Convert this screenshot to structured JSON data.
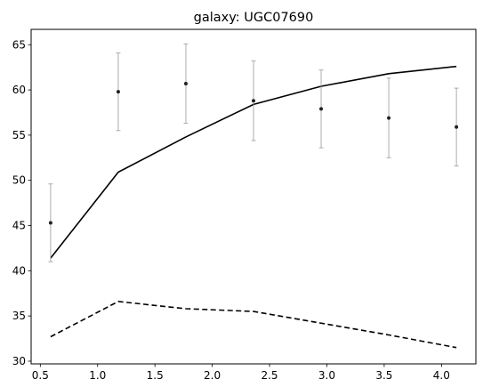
{
  "chart_data": {
    "type": "line",
    "title": "galaxy: UGC07690",
    "xlabel": "",
    "ylabel": "",
    "xlim": [
      0.42,
      4.3
    ],
    "ylim": [
      29.7,
      66.7
    ],
    "xticks": [
      0.5,
      1.0,
      1.5,
      2.0,
      2.5,
      3.0,
      3.5,
      4.0
    ],
    "xtick_labels": [
      "0.5",
      "1.0",
      "1.5",
      "2.0",
      "2.5",
      "3.0",
      "3.5",
      "4.0"
    ],
    "yticks": [
      30,
      35,
      40,
      45,
      50,
      55,
      60,
      65
    ],
    "ytick_labels": [
      "30",
      "35",
      "40",
      "45",
      "50",
      "55",
      "60",
      "65"
    ],
    "grid": false,
    "observed": {
      "x": [
        0.59,
        1.18,
        1.77,
        2.36,
        2.95,
        3.54,
        4.13
      ],
      "y": [
        45.3,
        59.8,
        60.7,
        58.8,
        57.9,
        56.9,
        55.9
      ],
      "err": [
        4.3,
        4.3,
        4.4,
        4.4,
        4.3,
        4.4,
        4.3
      ]
    },
    "series": [
      {
        "style": "solid",
        "color": "#000000",
        "x": [
          0.59,
          1.18,
          1.77,
          2.36,
          2.95,
          3.54,
          4.13
        ],
        "y": [
          41.4,
          50.9,
          54.8,
          58.4,
          60.4,
          61.8,
          62.6
        ]
      },
      {
        "style": "dashed",
        "color": "#000000",
        "x": [
          0.59,
          1.18,
          1.77,
          2.36,
          2.95,
          3.54,
          4.13
        ],
        "y": [
          32.7,
          36.6,
          35.8,
          35.5,
          34.2,
          32.9,
          31.5
        ]
      }
    ],
    "colors": {
      "points": "#222222",
      "errorbars": "#999999",
      "axes": "#000000"
    }
  }
}
